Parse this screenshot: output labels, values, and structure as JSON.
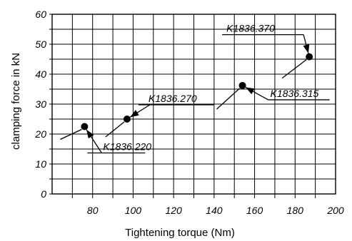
{
  "chart_data": {
    "type": "scatter",
    "xlabel": "Tightening torque (Nm)",
    "ylabel": "clamping force in kN",
    "xlim": [
      60,
      200
    ],
    "ylim": [
      0,
      60
    ],
    "x_ticks": [
      "80",
      "100",
      "120",
      "140",
      "160",
      "180",
      "200"
    ],
    "y_ticks": [
      "0",
      "10",
      "20",
      "30",
      "40",
      "50",
      "60"
    ],
    "grid": true,
    "points": [
      {
        "label": "K1836.220",
        "x": 76,
        "y": 22.5
      },
      {
        "label": "K1836.270",
        "x": 97,
        "y": 25
      },
      {
        "label": "K1836.315",
        "x": 154,
        "y": 36.2
      },
      {
        "label": "K1836.370",
        "x": 187,
        "y": 45.8
      }
    ]
  }
}
